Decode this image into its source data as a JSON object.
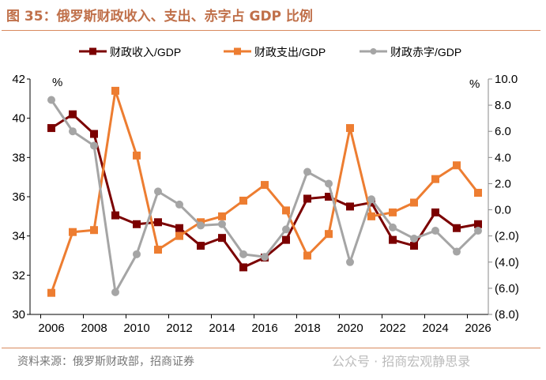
{
  "title": "图 35：俄罗斯财政收入、支出、赤字占 GDP 比例",
  "source": "资料来源：俄罗斯财政部，招商证券",
  "watermark": "公众号 · 招商宏观静思录",
  "chart_data": {
    "type": "line",
    "title": "",
    "x": [
      2006,
      2007,
      2008,
      2009,
      2010,
      2011,
      2012,
      2013,
      2014,
      2015,
      2016,
      2017,
      2018,
      2019,
      2020,
      2021,
      2022,
      2023,
      2024,
      2025,
      2026
    ],
    "x_ticks": [
      "2006",
      "2008",
      "2010",
      "2012",
      "2014",
      "2016",
      "2018",
      "2020",
      "2022",
      "2024",
      "2026"
    ],
    "left_axis": {
      "unit_label": "%",
      "ylim": [
        30,
        42
      ],
      "ticks": [
        "30",
        "32",
        "34",
        "36",
        "38",
        "40",
        "42"
      ]
    },
    "right_axis": {
      "unit_label": "%",
      "ylim": [
        -8,
        10
      ],
      "ticks": [
        "10.0",
        "8.0",
        "6.0",
        "4.0",
        "2.0",
        "0.0",
        "(2.0)",
        "(4.0)",
        "(6.0)",
        "(8.0)"
      ],
      "negative_color": "#ff0000"
    },
    "legend_position": "top",
    "grid": false,
    "series": [
      {
        "name": "财政收入/GDP",
        "axis": "left",
        "color": "#7b0000",
        "marker": "square",
        "values": [
          39.5,
          40.2,
          39.2,
          35.05,
          34.6,
          34.7,
          34.4,
          33.5,
          33.9,
          32.4,
          32.9,
          33.8,
          35.9,
          36.0,
          35.5,
          35.7,
          33.8,
          33.5,
          35.2,
          34.4,
          34.6
        ]
      },
      {
        "name": "财政支出/GDP",
        "axis": "left",
        "color": "#ed7d31",
        "marker": "square",
        "values": [
          31.1,
          34.2,
          34.3,
          41.4,
          38.1,
          33.3,
          34.0,
          34.7,
          35.0,
          35.8,
          36.6,
          35.3,
          33.0,
          34.1,
          39.5,
          35.0,
          35.2,
          35.7,
          36.9,
          37.6,
          36.2
        ]
      },
      {
        "name": "财政赤字/GDP",
        "axis": "right",
        "color": "#a5a5a5",
        "marker": "circle",
        "values": [
          8.4,
          6.0,
          4.9,
          -6.3,
          -3.4,
          1.4,
          0.4,
          -1.2,
          -1.1,
          -3.4,
          -3.6,
          -1.5,
          2.9,
          2.0,
          -4.0,
          0.8,
          -1.35,
          -2.2,
          -1.6,
          -3.2,
          -1.6
        ]
      }
    ]
  }
}
